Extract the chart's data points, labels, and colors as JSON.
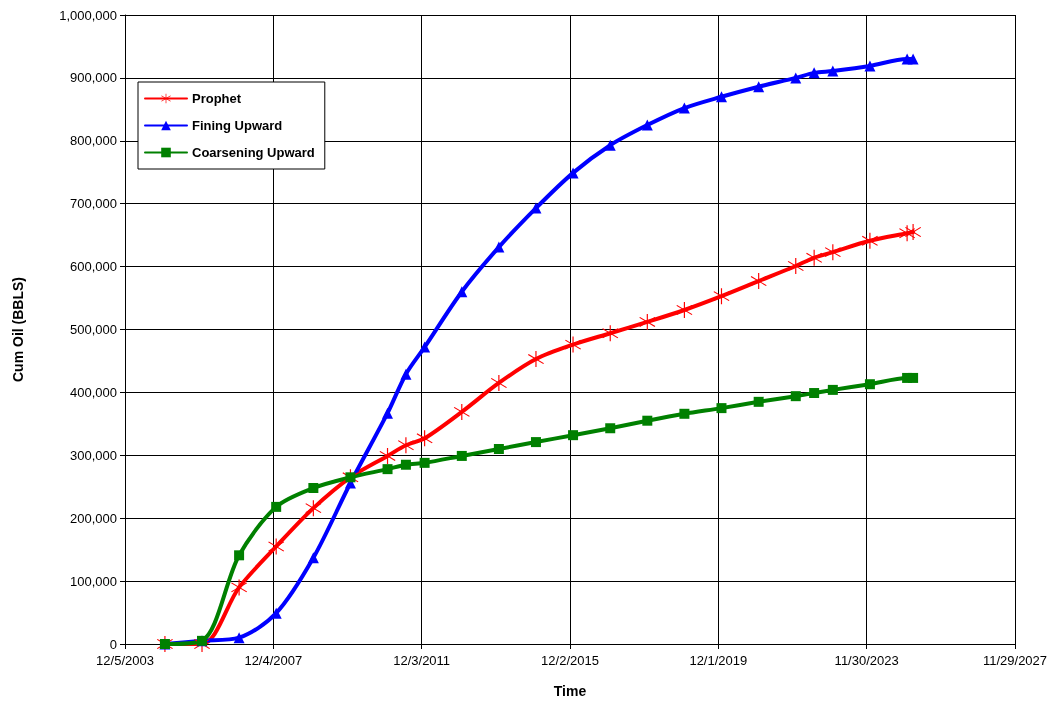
{
  "chart_data": {
    "type": "line",
    "xlabel": "Time",
    "ylabel": "Cum Oil (BBLS)",
    "x": [
      "2005-01-01",
      "2006-01-01",
      "2007-01-01",
      "2008-01-01",
      "2009-01-01",
      "2010-01-01",
      "2011-01-01",
      "2011-07-01",
      "2012-01-01",
      "2013-01-01",
      "2014-01-01",
      "2015-01-01",
      "2016-01-01",
      "2017-01-01",
      "2018-01-01",
      "2019-01-01",
      "2020-01-01",
      "2021-01-01",
      "2022-01-01",
      "2022-07-01",
      "2023-01-01",
      "2024-01-01",
      "2025-01-01",
      "2025-03-01"
    ],
    "series": [
      {
        "name": "Prophet",
        "color": "#ff0000",
        "marker": "cross",
        "values": [
          0,
          0,
          90000,
          155000,
          216000,
          265000,
          299000,
          316000,
          327000,
          369000,
          415000,
          453000,
          476000,
          494000,
          512000,
          531000,
          553000,
          577000,
          601000,
          614000,
          623000,
          641000,
          653000,
          655000
        ]
      },
      {
        "name": "Fining Upward",
        "color": "#0000ff",
        "marker": "triangle",
        "values": [
          0,
          5000,
          10000,
          49000,
          137000,
          256000,
          367000,
          429000,
          472000,
          560000,
          631000,
          693000,
          749000,
          793000,
          825000,
          852000,
          870000,
          886000,
          900000,
          908000,
          911000,
          919000,
          930000,
          930000
        ]
      },
      {
        "name": "Coarsening Upward",
        "color": "#008000",
        "marker": "square",
        "values": [
          0,
          5000,
          141000,
          218000,
          248000,
          265000,
          278000,
          285000,
          288000,
          299000,
          310000,
          321000,
          332000,
          343000,
          355000,
          366000,
          375000,
          385000,
          394000,
          399000,
          404000,
          413000,
          423000,
          423000
        ]
      }
    ],
    "xlim": [
      "2003-12-05",
      "2027-11-29"
    ],
    "xticks": [
      {
        "value": "2003-12-05",
        "label": "12/5/2003"
      },
      {
        "value": "2007-12-04",
        "label": "12/4/2007"
      },
      {
        "value": "2011-12-03",
        "label": "12/3/2011"
      },
      {
        "value": "2015-12-02",
        "label": "12/2/2015"
      },
      {
        "value": "2019-12-01",
        "label": "12/1/2019"
      },
      {
        "value": "2023-11-30",
        "label": "11/30/2023"
      },
      {
        "value": "2027-11-29",
        "label": "11/29/2027"
      }
    ],
    "ylim": [
      0,
      1000000
    ],
    "yticks": [
      0,
      {
        "value": 100000,
        "label": "100,000"
      },
      {
        "value": 200000,
        "label": "200,000"
      },
      {
        "value": 300000,
        "label": "300,000"
      },
      {
        "value": 400000,
        "label": "400,000"
      },
      {
        "value": 500000,
        "label": "500,000"
      },
      {
        "value": 600000,
        "label": "600,000"
      },
      {
        "value": 700000,
        "label": "700,000"
      },
      {
        "value": 800000,
        "label": "800,000"
      },
      {
        "value": 900000,
        "label": "900,000"
      },
      {
        "value": 1000000,
        "label": "1,000,000"
      }
    ],
    "grid": true,
    "legend": "top left",
    "line_style": "solid"
  }
}
